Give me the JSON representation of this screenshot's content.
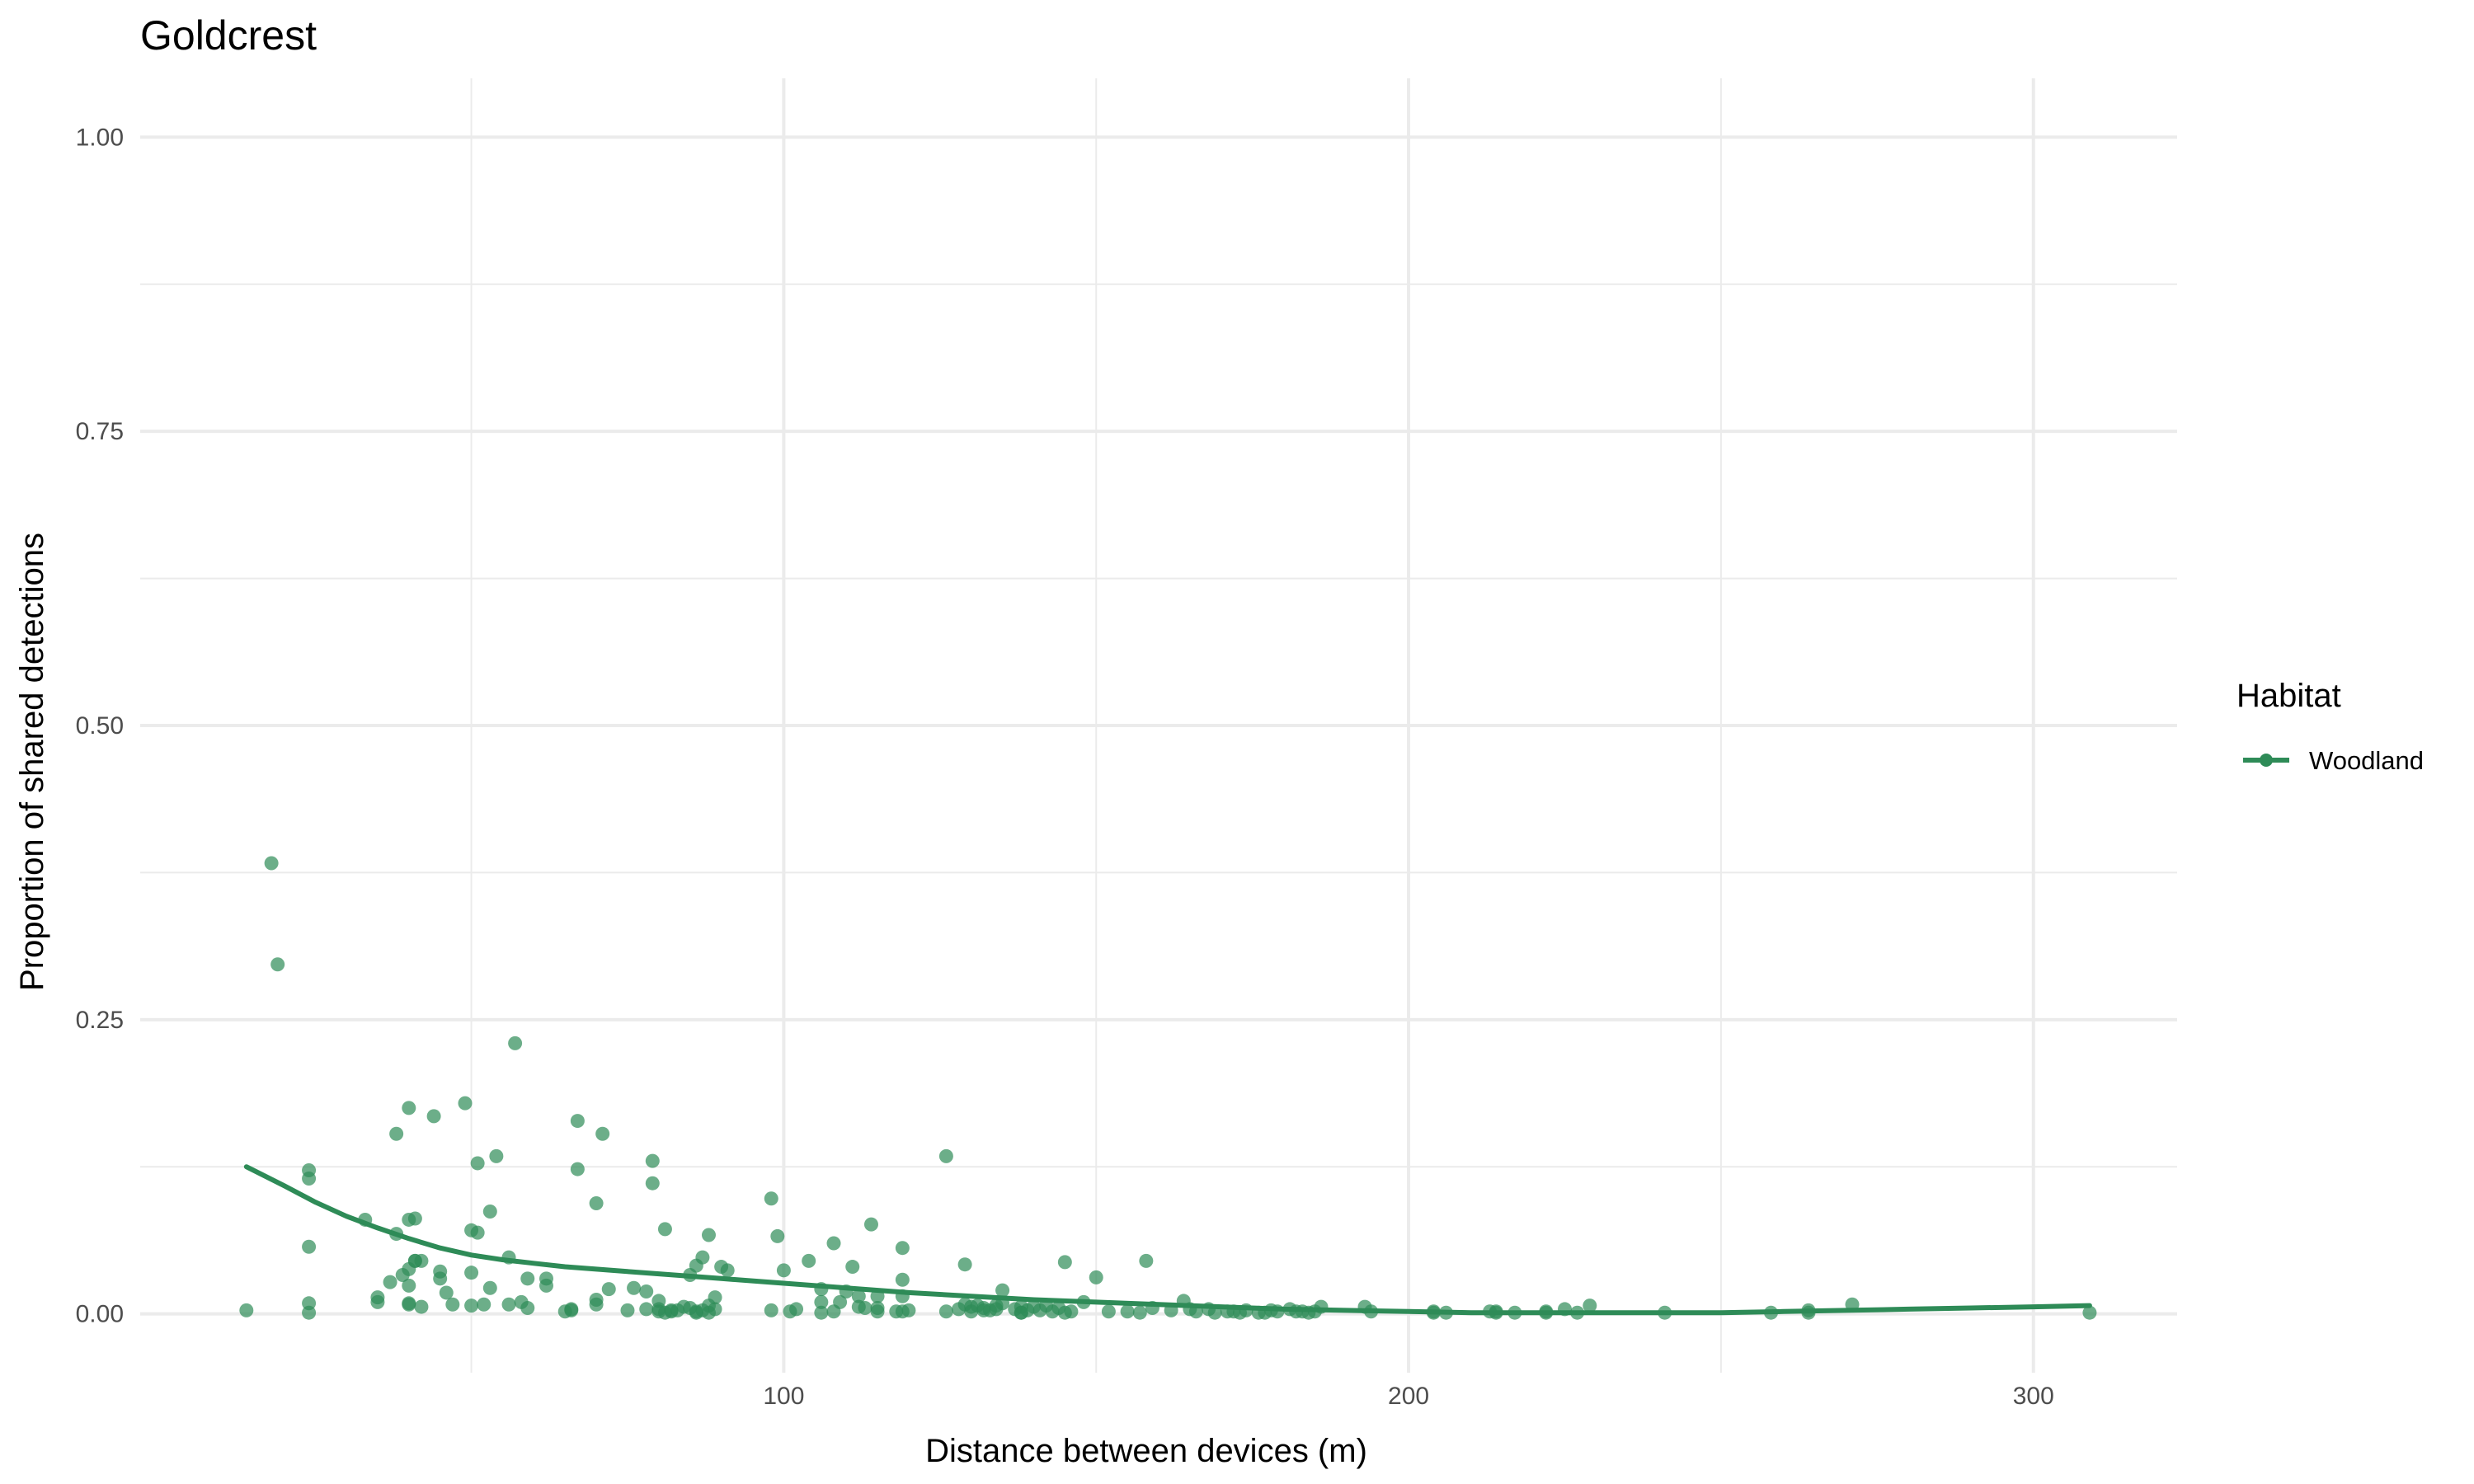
{
  "chart_data": {
    "type": "scatter",
    "title": "Goldcrest",
    "xlabel": "Distance between devices (m)",
    "ylabel": "Proportion of shared detections",
    "xlim": [
      -3,
      323
    ],
    "ylim": [
      -0.05,
      1.05
    ],
    "x_ticks": [
      100,
      200,
      300
    ],
    "x_minor_ticks": [
      50,
      150,
      250
    ],
    "y_ticks": [
      0.0,
      0.25,
      0.5,
      0.75,
      1.0
    ],
    "y_tick_labels": [
      "0.00",
      "0.25",
      "0.50",
      "0.75",
      "1.00"
    ],
    "y_minor_ticks": [
      0.125,
      0.375,
      0.625,
      0.875
    ],
    "grid": true,
    "legend": {
      "title": "Habitat",
      "position": "right",
      "entries": [
        "Woodland"
      ]
    },
    "colors": {
      "series": "#2e8b57",
      "grid": "#ebebeb"
    },
    "series": [
      {
        "name": "Woodland",
        "points": [
          [
            14,
            0.003
          ],
          [
            18,
            0.383
          ],
          [
            19,
            0.297
          ],
          [
            24,
            0.115
          ],
          [
            24,
            0.122
          ],
          [
            24,
            0.057
          ],
          [
            24,
            0.009
          ],
          [
            24,
            0.001
          ],
          [
            33,
            0.08
          ],
          [
            35,
            0.014
          ],
          [
            35,
            0.01
          ],
          [
            37,
            0.027
          ],
          [
            38,
            0.153
          ],
          [
            38,
            0.068
          ],
          [
            39,
            0.033
          ],
          [
            40,
            0.08
          ],
          [
            40,
            0.038
          ],
          [
            40,
            0.175
          ],
          [
            40,
            0.024
          ],
          [
            40,
            0.009
          ],
          [
            40,
            0.008
          ],
          [
            41,
            0.081
          ],
          [
            41,
            0.045
          ],
          [
            41,
            0.045
          ],
          [
            42,
            0.006
          ],
          [
            42,
            0.045
          ],
          [
            44,
            0.168
          ],
          [
            45,
            0.03
          ],
          [
            45,
            0.036
          ],
          [
            46,
            0.018
          ],
          [
            47,
            0.008
          ],
          [
            49,
            0.179
          ],
          [
            50,
            0.071
          ],
          [
            50,
            0.035
          ],
          [
            50,
            0.007
          ],
          [
            51,
            0.069
          ],
          [
            51,
            0.128
          ],
          [
            52,
            0.008
          ],
          [
            53,
            0.087
          ],
          [
            53,
            0.022
          ],
          [
            54,
            0.134
          ],
          [
            56,
            0.048
          ],
          [
            56,
            0.008
          ],
          [
            57,
            0.23
          ],
          [
            58,
            0.01
          ],
          [
            59,
            0.005
          ],
          [
            59,
            0.03
          ],
          [
            62,
            0.024
          ],
          [
            62,
            0.03
          ],
          [
            65,
            0.002
          ],
          [
            66,
            0.004
          ],
          [
            66,
            0.003
          ],
          [
            67,
            0.164
          ],
          [
            67,
            0.123
          ],
          [
            70,
            0.094
          ],
          [
            70,
            0.008
          ],
          [
            70,
            0.012
          ],
          [
            71,
            0.153
          ],
          [
            72,
            0.021
          ],
          [
            75,
            0.003
          ],
          [
            76,
            0.022
          ],
          [
            78,
            0.004
          ],
          [
            78,
            0.019
          ],
          [
            79,
            0.13
          ],
          [
            79,
            0.111
          ],
          [
            80,
            0.011
          ],
          [
            80,
            0.004
          ],
          [
            80,
            0.002
          ],
          [
            81,
            0.001
          ],
          [
            81,
            0.072
          ],
          [
            82,
            0.002
          ],
          [
            82,
            0.003
          ],
          [
            83,
            0.003
          ],
          [
            84,
            0.006
          ],
          [
            85,
            0.005
          ],
          [
            85,
            0.033
          ],
          [
            86,
            0.041
          ],
          [
            86,
            0.002
          ],
          [
            86,
            0.001
          ],
          [
            87,
            0.048
          ],
          [
            87,
            0.003
          ],
          [
            88,
            0.001
          ],
          [
            88,
            0.007
          ],
          [
            88,
            0.067
          ],
          [
            89,
            0.004
          ],
          [
            89,
            0.014
          ],
          [
            90,
            0.04
          ],
          [
            91,
            0.037
          ],
          [
            98,
            0.098
          ],
          [
            98,
            0.003
          ],
          [
            99,
            0.066
          ],
          [
            100,
            0.037
          ],
          [
            101,
            0.002
          ],
          [
            102,
            0.004
          ],
          [
            104,
            0.045
          ],
          [
            106,
            0.021
          ],
          [
            106,
            0.01
          ],
          [
            106,
            0.001
          ],
          [
            108,
            0.06
          ],
          [
            108,
            0.002
          ],
          [
            109,
            0.01
          ],
          [
            110,
            0.019
          ],
          [
            111,
            0.04
          ],
          [
            112,
            0.006
          ],
          [
            112,
            0.015
          ],
          [
            113,
            0.005
          ],
          [
            114,
            0.076
          ],
          [
            115,
            0.015
          ],
          [
            115,
            0.002
          ],
          [
            115,
            0.005
          ],
          [
            118,
            0.002
          ],
          [
            119,
            0.056
          ],
          [
            119,
            0.029
          ],
          [
            119,
            0.015
          ],
          [
            119,
            0.002
          ],
          [
            120,
            0.003
          ],
          [
            126,
            0.134
          ],
          [
            126,
            0.002
          ],
          [
            128,
            0.004
          ],
          [
            129,
            0.042
          ],
          [
            129,
            0.008
          ],
          [
            130,
            0.006
          ],
          [
            130,
            0.002
          ],
          [
            131,
            0.007
          ],
          [
            132,
            0.005
          ],
          [
            132,
            0.003
          ],
          [
            133,
            0.003
          ],
          [
            134,
            0.004
          ],
          [
            134,
            0.007
          ],
          [
            135,
            0.02
          ],
          [
            135,
            0.009
          ],
          [
            137,
            0.004
          ],
          [
            138,
            0.006
          ],
          [
            138,
            0.001
          ],
          [
            138,
            0.001
          ],
          [
            139,
            0.003
          ],
          [
            140,
            0.006
          ],
          [
            141,
            0.003
          ],
          [
            142,
            0.007
          ],
          [
            143,
            0.002
          ],
          [
            144,
            0.005
          ],
          [
            145,
            0.044
          ],
          [
            145,
            0.001
          ],
          [
            146,
            0.002
          ],
          [
            148,
            0.01
          ],
          [
            150,
            0.031
          ],
          [
            152,
            0.002
          ],
          [
            155,
            0.002
          ],
          [
            157,
            0.001
          ],
          [
            158,
            0.045
          ],
          [
            159,
            0.005
          ],
          [
            162,
            0.003
          ],
          [
            164,
            0.011
          ],
          [
            165,
            0.004
          ],
          [
            166,
            0.002
          ],
          [
            168,
            0.004
          ],
          [
            169,
            0.001
          ],
          [
            171,
            0.002
          ],
          [
            172,
            0.002
          ],
          [
            173,
            0.001
          ],
          [
            174,
            0.003
          ],
          [
            176,
            0.001
          ],
          [
            177,
            0.001
          ],
          [
            178,
            0.003
          ],
          [
            179,
            0.002
          ],
          [
            181,
            0.004
          ],
          [
            182,
            0.002
          ],
          [
            183,
            0.002
          ],
          [
            184,
            0.001
          ],
          [
            185,
            0.002
          ],
          [
            186,
            0.006
          ],
          [
            193,
            0.006
          ],
          [
            194,
            0.002
          ],
          [
            204,
            0.002
          ],
          [
            204,
            0.001
          ],
          [
            206,
            0.001
          ],
          [
            213,
            0.002
          ],
          [
            214,
            0.001
          ],
          [
            214,
            0.002
          ],
          [
            217,
            0.001
          ],
          [
            222,
            0.001
          ],
          [
            222,
            0.002
          ],
          [
            225,
            0.004
          ],
          [
            227,
            0.001
          ],
          [
            229,
            0.007
          ],
          [
            241,
            0.001
          ],
          [
            258,
            0.001
          ],
          [
            264,
            0.003
          ],
          [
            264,
            0.001
          ],
          [
            271,
            0.008
          ],
          [
            309,
            0.001
          ]
        ],
        "trend": [
          [
            14,
            0.125
          ],
          [
            20,
            0.109
          ],
          [
            25,
            0.095
          ],
          [
            30,
            0.083
          ],
          [
            35,
            0.073
          ],
          [
            40,
            0.064
          ],
          [
            45,
            0.056
          ],
          [
            50,
            0.05
          ],
          [
            55,
            0.046
          ],
          [
            60,
            0.043
          ],
          [
            65,
            0.04
          ],
          [
            70,
            0.038
          ],
          [
            75,
            0.036
          ],
          [
            80,
            0.034
          ],
          [
            90,
            0.03
          ],
          [
            100,
            0.026
          ],
          [
            110,
            0.022
          ],
          [
            120,
            0.018
          ],
          [
            130,
            0.015
          ],
          [
            140,
            0.012
          ],
          [
            150,
            0.01
          ],
          [
            160,
            0.008
          ],
          [
            170,
            0.006
          ],
          [
            180,
            0.004
          ],
          [
            190,
            0.003
          ],
          [
            200,
            0.002
          ],
          [
            210,
            0.001
          ],
          [
            220,
            0.001
          ],
          [
            230,
            0.001
          ],
          [
            240,
            0.001
          ],
          [
            250,
            0.001
          ],
          [
            260,
            0.002
          ],
          [
            270,
            0.003
          ],
          [
            280,
            0.004
          ],
          [
            290,
            0.005
          ],
          [
            300,
            0.006
          ],
          [
            309,
            0.007
          ]
        ]
      }
    ]
  }
}
